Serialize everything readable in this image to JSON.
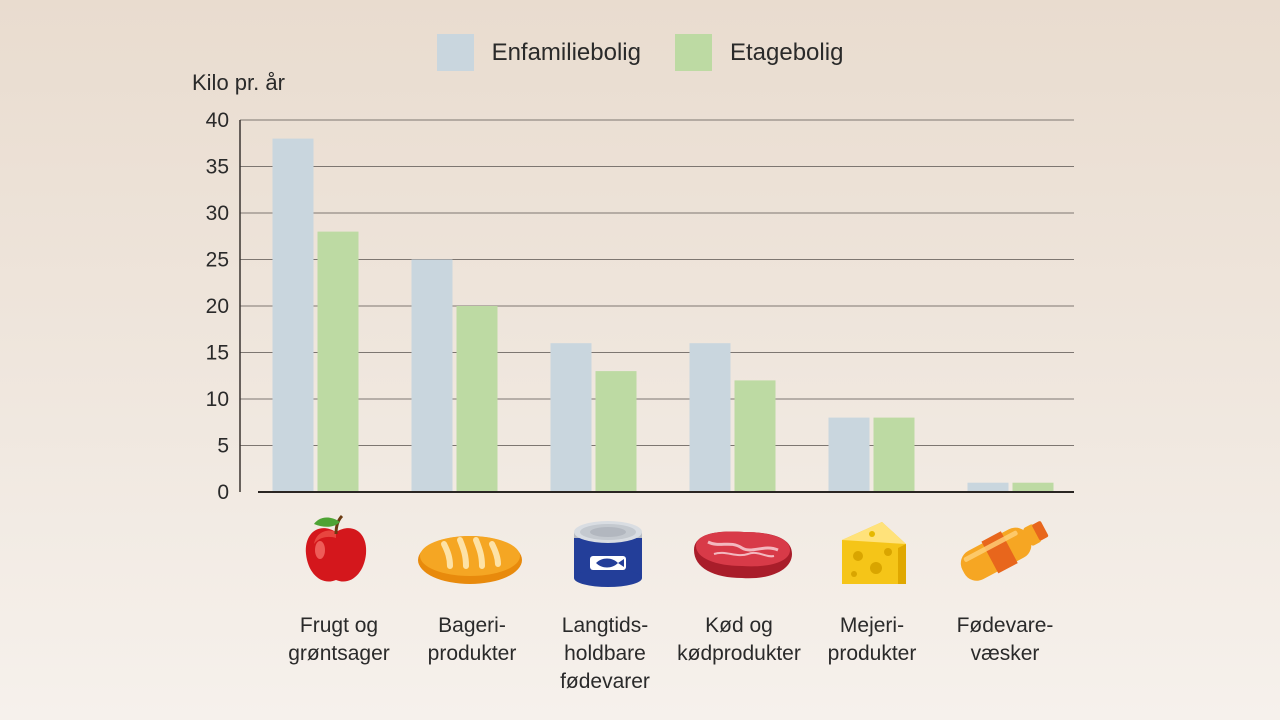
{
  "chart_data": {
    "type": "bar",
    "ylabel": "Kilo pr. år",
    "ylim": [
      0,
      40
    ],
    "yticks": [
      0,
      5,
      10,
      15,
      20,
      25,
      30,
      35,
      40
    ],
    "categories": [
      "Frugt og\ngrøntsager",
      "Bageri-\nprodukter",
      "Langtids-\nholdbare\nfødevarer",
      "Kød og\nkødprodukter",
      "Mejeri-\nprodukter",
      "Fødevare-\nvæsker"
    ],
    "series": [
      {
        "name": "Enfamiliebolig",
        "color": "#c9d6de",
        "values": [
          38,
          25,
          16,
          16,
          8,
          1
        ]
      },
      {
        "name": "Etagebolig",
        "color": "#bddaa3",
        "values": [
          28,
          20,
          13,
          12,
          8,
          1
        ]
      }
    ],
    "grid": true,
    "legend": "top-center"
  },
  "icons": [
    "apple-icon",
    "bread-icon",
    "tin-can-icon",
    "meat-icon",
    "cheese-icon",
    "bottle-icon"
  ]
}
